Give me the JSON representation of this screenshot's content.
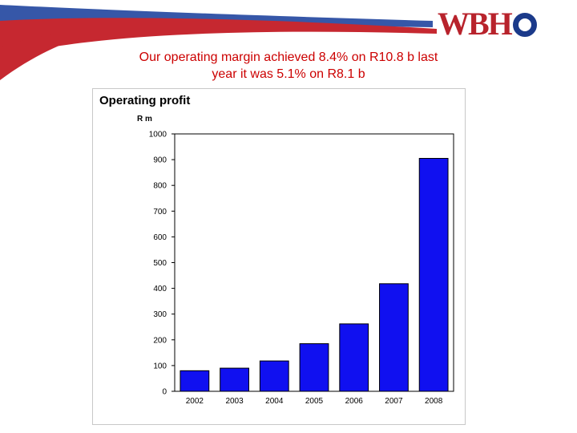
{
  "logo": {
    "text": "WBH",
    "ring_letter": "O"
  },
  "headline": {
    "line1": "Our operating margin achieved 8.4% on R10.8 b last",
    "line2": "year it was 5.1% on R8.1 b"
  },
  "colors": {
    "bar": "#1010f0",
    "bar_stroke": "#000000",
    "headline": "#cc0000",
    "swoosh_red": "#c62830",
    "swoosh_blue": "#3657a8"
  },
  "chart_data": {
    "type": "bar",
    "title": "Operating profit",
    "ylabel": "R m",
    "xlabel": "",
    "categories": [
      "2002",
      "2003",
      "2004",
      "2005",
      "2006",
      "2007",
      "2008"
    ],
    "values": [
      80,
      90,
      118,
      185,
      262,
      418,
      905
    ],
    "ylim": [
      0,
      1000
    ],
    "yticks": [
      0,
      100,
      200,
      300,
      400,
      500,
      600,
      700,
      800,
      900,
      1000
    ],
    "grid": false,
    "legend": "none"
  }
}
